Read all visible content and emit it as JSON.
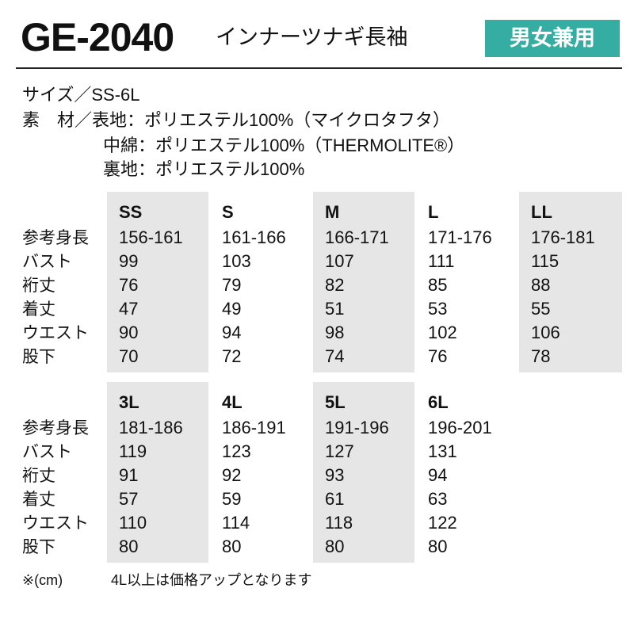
{
  "header": {
    "code": "GE-2040",
    "name": "インナーツナギ長袖",
    "badge": "男女兼用"
  },
  "spec_lines": [
    "サイズ／SS-6L",
    "素　材／表地：ポリエステル100%（マイクロタフタ）",
    "中綿：ポリエステル100%（THERMOLITE®）",
    "裏地：ポリエステル100%"
  ],
  "row_labels": [
    "参考身長",
    "バスト",
    "裄丈",
    "着丈",
    "ウエスト",
    "股下"
  ],
  "tables": [
    {
      "sizes": [
        "SS",
        "S",
        "M",
        "L",
        "LL"
      ],
      "rows": [
        [
          "156-161",
          "161-166",
          "166-171",
          "171-176",
          "176-181"
        ],
        [
          "99",
          "103",
          "107",
          "111",
          "115"
        ],
        [
          "76",
          "79",
          "82",
          "85",
          "88"
        ],
        [
          "47",
          "49",
          "51",
          "53",
          "55"
        ],
        [
          "90",
          "94",
          "98",
          "102",
          "106"
        ],
        [
          "70",
          "72",
          "74",
          "76",
          "78"
        ]
      ]
    },
    {
      "sizes": [
        "3L",
        "4L",
        "5L",
        "6L"
      ],
      "rows": [
        [
          "181-186",
          "186-191",
          "191-196",
          "196-201"
        ],
        [
          "119",
          "123",
          "127",
          "131"
        ],
        [
          "91",
          "92",
          "93",
          "94"
        ],
        [
          "57",
          "59",
          "61",
          "63"
        ],
        [
          "110",
          "114",
          "118",
          "122"
        ],
        [
          "80",
          "80",
          "80",
          "80"
        ]
      ]
    }
  ],
  "footnote": {
    "unit": "※(cm)",
    "note": "4L以上は価格アップとなります"
  }
}
